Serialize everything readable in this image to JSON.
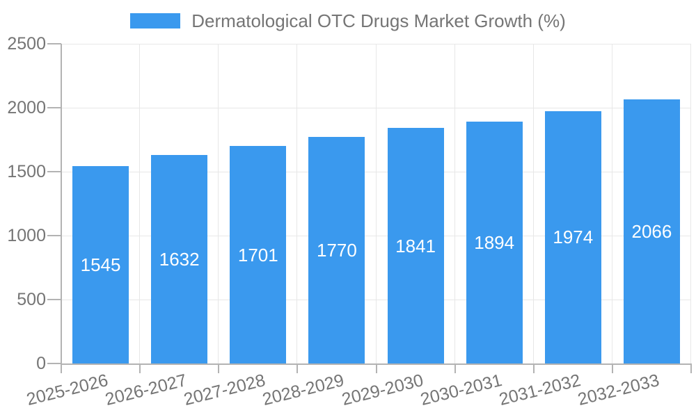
{
  "chart_data": {
    "type": "bar",
    "title": "",
    "legend_label": "Dermatological OTC Drugs Market Growth (%)",
    "legend_position": "top",
    "categories": [
      "2025-2026",
      "2026-2027",
      "2027-2028",
      "2028-2029",
      "2029-2030",
      "2030-2031",
      "2031-2032",
      "2032-2033"
    ],
    "values": [
      1545,
      1632,
      1701,
      1770,
      1841,
      1894,
      1974,
      2066
    ],
    "value_labels_shown": true,
    "xlabel": "",
    "ylabel": "",
    "y_ticks": [
      0,
      500,
      1000,
      1500,
      2000,
      2500
    ],
    "ylim": [
      0,
      2500
    ],
    "grid": true,
    "colors": {
      "bar": "#3a99ee",
      "value_label": "#ffffff",
      "axis_text": "#757575",
      "grid_line": "#e7e7e7",
      "axis_line": "#b3b3b3",
      "background": "#ffffff"
    }
  }
}
